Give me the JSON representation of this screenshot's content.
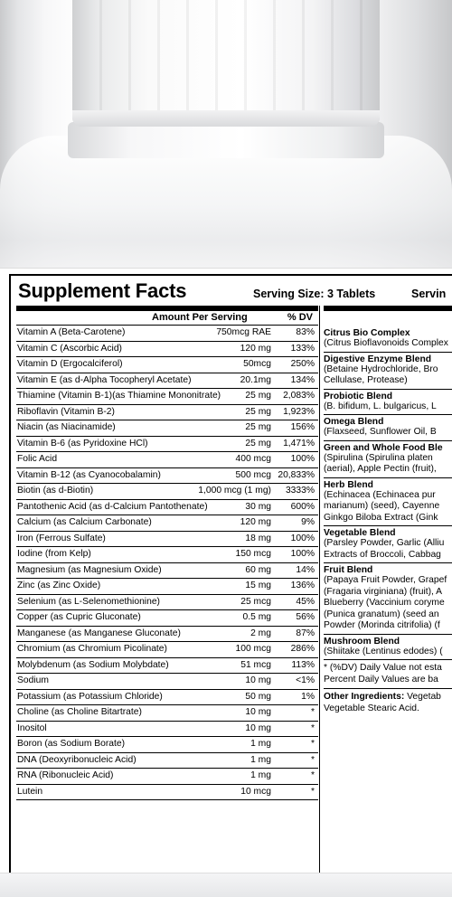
{
  "label": {
    "title": "Supplement Facts",
    "serving_size": "Serving Size: 3 Tablets",
    "servings_cut": "Servin",
    "amount_header": "Amount Per Serving",
    "dv_header": "% DV",
    "nutrients": [
      {
        "name": "Vitamin A (Beta-Carotene)",
        "amount": "750mcg RAE",
        "dv": "83%"
      },
      {
        "name": "Vitamin C (Ascorbic Acid)",
        "amount": "120 mg",
        "dv": "133%"
      },
      {
        "name": "Vitamin D (Ergocalciferol)",
        "amount": "50mcg",
        "dv": "250%"
      },
      {
        "name": "Vitamin E (as d-Alpha Tocopheryl Acetate)",
        "amount": "20.1mg",
        "dv": "134%"
      },
      {
        "name": "Thiamine (Vitamin B-1)(as Thiamine Mononitrate)",
        "amount": "25 mg",
        "dv": "2,083%"
      },
      {
        "name": "Riboflavin (Vitamin B-2)",
        "amount": "25 mg",
        "dv": "1,923%"
      },
      {
        "name": "Niacin (as Niacinamide)",
        "amount": "25 mg",
        "dv": "156%"
      },
      {
        "name": "Vitamin B-6 (as Pyridoxine HCl)",
        "amount": "25 mg",
        "dv": "1,471%"
      },
      {
        "name": "Folic Acid",
        "amount": "400 mcg",
        "dv": "100%"
      },
      {
        "name": "Vitamin B-12 (as Cyanocobalamin)",
        "amount": "500 mcg",
        "dv": "20,833%"
      },
      {
        "name": "Biotin (as d-Biotin)",
        "amount": "1,000 mcg (1 mg)",
        "dv": "3333%"
      },
      {
        "name": "Pantothenic Acid (as d-Calcium Pantothenate)",
        "amount": "30 mg",
        "dv": "600%"
      },
      {
        "name": "Calcium (as Calcium Carbonate)",
        "amount": "120 mg",
        "dv": "9%"
      },
      {
        "name": "Iron (Ferrous Sulfate)",
        "amount": "18 mg",
        "dv": "100%"
      },
      {
        "name": "Iodine (from Kelp)",
        "amount": "150 mcg",
        "dv": "100%"
      },
      {
        "name": "Magnesium (as Magnesium Oxide)",
        "amount": "60 mg",
        "dv": "14%"
      },
      {
        "name": "Zinc (as Zinc Oxide)",
        "amount": "15 mg",
        "dv": "136%"
      },
      {
        "name": "Selenium (as L-Selenomethionine)",
        "amount": "25 mcg",
        "dv": "45%"
      },
      {
        "name": "Copper (as Cupric Gluconate)",
        "amount": "0.5 mg",
        "dv": "56%"
      },
      {
        "name": "Manganese (as Manganese Gluconate)",
        "amount": "2 mg",
        "dv": "87%"
      },
      {
        "name": "Chromium (as Chromium Picolinate)",
        "amount": "100 mcg",
        "dv": "286%"
      },
      {
        "name": "Molybdenum (as Sodium Molybdate)",
        "amount": "51 mcg",
        "dv": "113%"
      },
      {
        "name": "Sodium",
        "amount": "10 mg",
        "dv": "<1%"
      },
      {
        "name": "Potassium (as Potassium Chloride)",
        "amount": "50 mg",
        "dv": "1%"
      },
      {
        "name": "Choline (as Choline Bitartrate)",
        "amount": "10 mg",
        "dv": "*"
      },
      {
        "name": "Inositol",
        "amount": "10 mg",
        "dv": "*"
      },
      {
        "name": "Boron (as Sodium Borate)",
        "amount": "1 mg",
        "dv": "*"
      },
      {
        "name": "DNA (Deoxyribonucleic Acid)",
        "amount": "1 mg",
        "dv": "*"
      },
      {
        "name": "RNA (Ribonucleic Acid)",
        "amount": "1 mg",
        "dv": "*"
      },
      {
        "name": "Lutein",
        "amount": "10 mcg",
        "dv": "*"
      }
    ],
    "blends": [
      {
        "name": "Citrus Bio Complex",
        "lines": [
          "(Citrus Bioflavonoids Complex"
        ]
      },
      {
        "name": "Digestive Enzyme Blend",
        "lines": [
          "(Betaine Hydrochloride, Bro",
          "Cellulase, Protease)"
        ]
      },
      {
        "name": "Probiotic Blend",
        "lines": [
          "(B. bifidum, L. bulgaricus, L"
        ]
      },
      {
        "name": "Omega Blend",
        "lines": [
          "(Flaxseed, Sunflower Oil, B"
        ]
      },
      {
        "name": "Green and Whole Food Ble",
        "lines": [
          "(Spirulina (Spirulina platen",
          "(aerial), Apple Pectin (fruit),"
        ]
      },
      {
        "name": "Herb Blend",
        "lines": [
          "(Echinacea (Echinacea pur",
          "marianum) (seed), Cayenne",
          "Ginkgo Biloba Extract (Gink"
        ]
      },
      {
        "name": "Vegetable Blend",
        "lines": [
          "(Parsley Powder, Garlic (Alliu",
          "Extracts of Broccoli, Cabbag"
        ]
      },
      {
        "name": "Fruit Blend",
        "lines": [
          "(Papaya Fruit Powder, Grapef",
          "(Fragaria virginiana) (fruit), A",
          "Blueberry (Vaccinium coryme",
          "(Punica granatum) (seed an",
          "Powder (Morinda citrifolia) (f"
        ]
      },
      {
        "name": "Mushroom Blend",
        "lines": [
          "(Shiitake (Lentinus edodes) ("
        ]
      }
    ],
    "dv_note": [
      "* (%DV) Daily Value not esta",
      "Percent Daily Values are ba"
    ],
    "other_label": "Other Ingredients:",
    "other_lines": [
      " Vegetab",
      "Vegetable Stearic Acid."
    ]
  }
}
